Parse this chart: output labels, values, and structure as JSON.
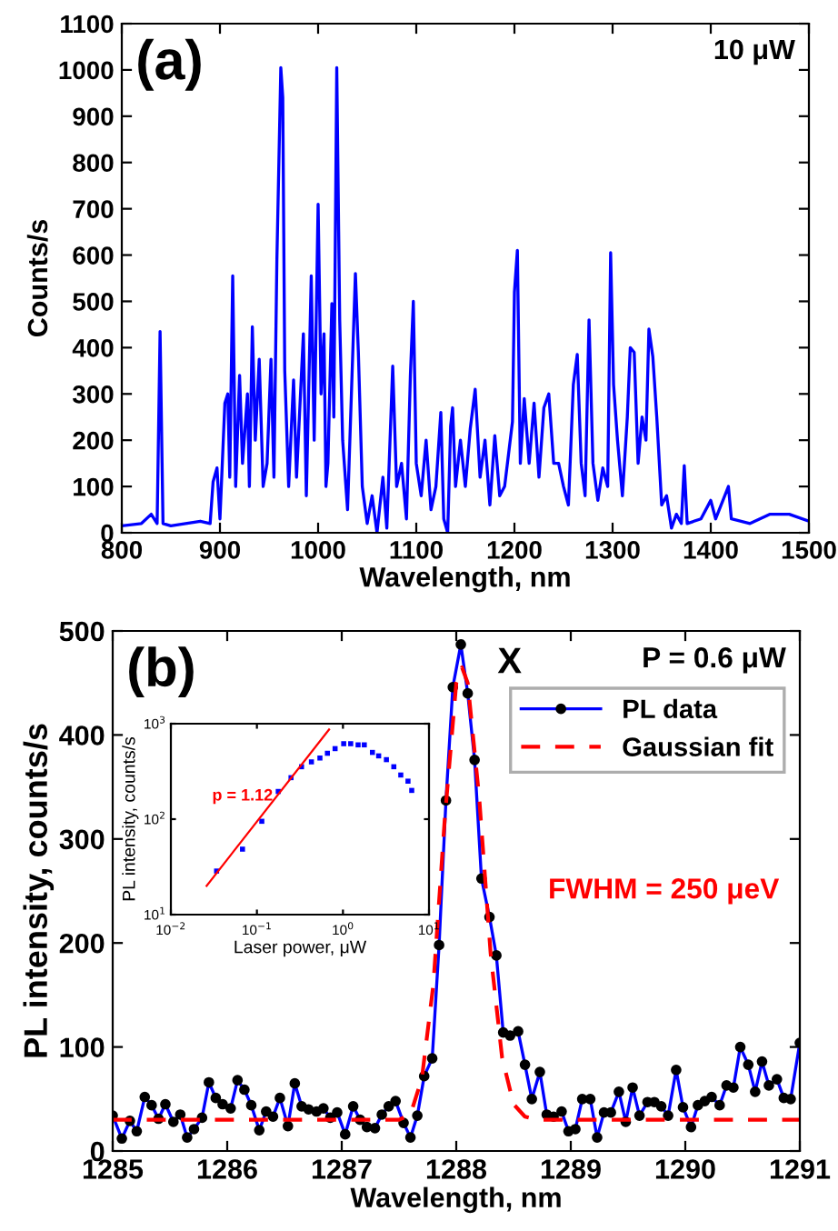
{
  "chart_data": [
    {
      "type": "line",
      "xlabel": "Wavelength, nm",
      "ylabel": "Counts/s",
      "annotations": [
        "(a)",
        "10 μW"
      ],
      "series": [
        {
          "color": "#0000ff",
          "x": [
            800,
            820,
            830,
            836,
            839,
            842,
            850,
            880,
            890,
            893,
            897,
            900,
            905,
            908,
            910,
            913,
            916,
            920,
            923,
            928,
            930,
            933,
            936,
            940,
            944,
            948,
            952,
            955,
            958,
            962,
            964,
            966,
            970,
            975,
            978,
            985,
            988,
            993,
            996,
            1000,
            1003,
            1006,
            1008,
            1010,
            1014,
            1016,
            1019,
            1022,
            1025,
            1030,
            1038,
            1041,
            1045,
            1050,
            1055,
            1060,
            1066,
            1070,
            1076,
            1080,
            1085,
            1090,
            1094,
            1097,
            1100,
            1105,
            1110,
            1115,
            1120,
            1125,
            1128,
            1132,
            1135,
            1137,
            1140,
            1145,
            1150,
            1155,
            1160,
            1165,
            1170,
            1175,
            1180,
            1185,
            1190,
            1198,
            1200,
            1203,
            1206,
            1210,
            1215,
            1220,
            1225,
            1230,
            1235,
            1240,
            1245,
            1250,
            1255,
            1260,
            1264,
            1268,
            1272,
            1276,
            1280,
            1285,
            1290,
            1295,
            1298,
            1301,
            1305,
            1310,
            1315,
            1318,
            1322,
            1326,
            1330,
            1334,
            1337,
            1341,
            1345,
            1350,
            1355,
            1360,
            1365,
            1370,
            1373,
            1376,
            1390,
            1400,
            1405,
            1418,
            1421,
            1440,
            1460,
            1480,
            1500
          ],
          "values": [
            15,
            20,
            40,
            20,
            435,
            20,
            15,
            25,
            20,
            110,
            140,
            30,
            280,
            300,
            120,
            555,
            100,
            340,
            150,
            300,
            100,
            445,
            200,
            375,
            100,
            150,
            375,
            120,
            590,
            1005,
            940,
            350,
            100,
            330,
            120,
            430,
            80,
            555,
            200,
            710,
            300,
            430,
            100,
            150,
            495,
            250,
            1005,
            460,
            200,
            50,
            560,
            390,
            100,
            20,
            80,
            0,
            120,
            10,
            360,
            100,
            150,
            30,
            340,
            500,
            150,
            80,
            200,
            50,
            100,
            260,
            30,
            0,
            230,
            270,
            100,
            200,
            100,
            225,
            310,
            120,
            200,
            60,
            210,
            80,
            100,
            240,
            520,
            610,
            150,
            290,
            150,
            280,
            120,
            270,
            300,
            150,
            150,
            100,
            60,
            320,
            385,
            150,
            80,
            460,
            150,
            70,
            140,
            100,
            605,
            320,
            200,
            80,
            250,
            400,
            390,
            150,
            250,
            200,
            440,
            380,
            250,
            60,
            80,
            10,
            40,
            20,
            145,
            20,
            30,
            70,
            30,
            100,
            30,
            20,
            40,
            40,
            25
          ]
        }
      ],
      "xlim": [
        800,
        1500
      ],
      "ylim": [
        0,
        1100
      ],
      "xticks": [
        800,
        900,
        1000,
        1100,
        1200,
        1300,
        1400,
        1500
      ],
      "yticks": [
        0,
        100,
        200,
        300,
        400,
        500,
        600,
        700,
        800,
        900,
        1000,
        1100
      ],
      "grid": false,
      "legend": false
    },
    {
      "type": "line",
      "xlabel": "Wavelength, nm",
      "ylabel": "PL intensity, counts/s",
      "annotations": [
        "(b)",
        "X",
        "P = 0.6 μW",
        "FWHM = 250 μeV"
      ],
      "legend": "top right",
      "series": [
        {
          "name": "PL data",
          "color": "#0000ff",
          "marker": "circle",
          "line_style": "solid",
          "x": [
            1285.0,
            1285.08,
            1285.15,
            1285.21,
            1285.28,
            1285.34,
            1285.4,
            1285.46,
            1285.53,
            1285.59,
            1285.65,
            1285.71,
            1285.78,
            1285.84,
            1285.9,
            1285.96,
            1286.03,
            1286.09,
            1286.15,
            1286.21,
            1286.28,
            1286.34,
            1286.4,
            1286.46,
            1286.53,
            1286.59,
            1286.65,
            1286.71,
            1286.78,
            1286.84,
            1286.9,
            1286.96,
            1287.03,
            1287.1,
            1287.16,
            1287.22,
            1287.29,
            1287.35,
            1287.41,
            1287.47,
            1287.54,
            1287.6,
            1287.66,
            1287.72,
            1287.79,
            1287.85,
            1287.91,
            1287.97,
            1288.04,
            1288.1,
            1288.16,
            1288.22,
            1288.29,
            1288.35,
            1288.41,
            1288.47,
            1288.54,
            1288.6,
            1288.66,
            1288.73,
            1288.79,
            1288.85,
            1288.92,
            1288.98,
            1289.04,
            1289.1,
            1289.17,
            1289.23,
            1289.29,
            1289.35,
            1289.42,
            1289.48,
            1289.54,
            1289.6,
            1289.67,
            1289.73,
            1289.79,
            1289.85,
            1289.92,
            1289.98,
            1290.05,
            1290.11,
            1290.17,
            1290.23,
            1290.3,
            1290.36,
            1290.42,
            1290.48,
            1290.55,
            1290.61,
            1290.67,
            1290.73,
            1290.8,
            1290.86,
            1290.92,
            1291.0
          ],
          "values": [
            34,
            12,
            29,
            19,
            52,
            44,
            31,
            45,
            28,
            35,
            13,
            21,
            32,
            66,
            51,
            45,
            41,
            68,
            59,
            44,
            20,
            38,
            33,
            51,
            24,
            65,
            43,
            40,
            38,
            41,
            32,
            37,
            16,
            43,
            30,
            23,
            22,
            35,
            43,
            48,
            27,
            13,
            34,
            72,
            89,
            198,
            337,
            446,
            487,
            440,
            376,
            262,
            225,
            188,
            114,
            111,
            115,
            83,
            50,
            76,
            35,
            33,
            38,
            19,
            21,
            50,
            50,
            13,
            37,
            37,
            57,
            28,
            61,
            34,
            47,
            47,
            43,
            34,
            78,
            42,
            23,
            44,
            48,
            52,
            44,
            63,
            61,
            100,
            83,
            57,
            86,
            63,
            69,
            51,
            50,
            104
          ]
        },
        {
          "name": "Gaussian fit",
          "color": "#ff0000",
          "marker": "none",
          "line_style": "dashed",
          "x": [
            1285,
            1287.5,
            1287.6,
            1287.7,
            1287.8,
            1287.9,
            1288.0,
            1288.05,
            1288.1,
            1288.2,
            1288.3,
            1288.4,
            1288.5,
            1288.6,
            1288.7,
            1291
          ],
          "values": [
            30,
            30,
            35,
            70,
            160,
            320,
            450,
            465,
            450,
            340,
            190,
            90,
            45,
            33,
            30,
            30
          ]
        }
      ],
      "xlim": [
        1285,
        1291
      ],
      "ylim": [
        0,
        500
      ],
      "xticks": [
        1285,
        1286,
        1287,
        1288,
        1289,
        1290,
        1291
      ],
      "yticks": [
        0,
        100,
        200,
        300,
        400,
        500
      ],
      "grid": false
    },
    {
      "type": "scatter",
      "xlabel": "Laser power, μW",
      "ylabel": "PL intensity, counts/s",
      "annotations": [
        "p = 1.12"
      ],
      "log": "xy",
      "legend": false,
      "grid": false,
      "series": [
        {
          "color": "#0000ff",
          "marker": "square",
          "x": [
            0.034,
            0.068,
            0.114,
            0.177,
            0.249,
            0.33,
            0.43,
            0.54,
            0.66,
            0.81,
            1.02,
            1.23,
            1.5,
            1.77,
            2.2,
            2.6,
            3.2,
            3.9,
            4.7,
            5.7,
            6.3
          ],
          "values": [
            28.6,
            48.5,
            95,
            195,
            272,
            354,
            398,
            437,
            490,
            548,
            617,
            617,
            600,
            600,
            500,
            460,
            420,
            354,
            290,
            250,
            200
          ]
        },
        {
          "type": "line",
          "color": "#ff0000",
          "x": [
            0.026,
            0.69
          ],
          "values": [
            20,
            870
          ]
        }
      ],
      "xlim": [
        0.01,
        10
      ],
      "ylim": [
        10,
        1000
      ],
      "xticks": [
        {
          "value": 0.01,
          "label": "10$^{−2}$"
        },
        {
          "value": 0.1,
          "label": "10$^{−1}$"
        },
        {
          "value": 1,
          "label": "10$^{0}$"
        },
        {
          "value": 10,
          "label": "10$^{1}$"
        }
      ],
      "yticks": [
        {
          "value": 10,
          "label": "10$^{1}$"
        },
        {
          "value": 100,
          "label": "10$^{2}$"
        },
        {
          "value": 1000,
          "label": "10$^{3}$"
        }
      ]
    }
  ]
}
